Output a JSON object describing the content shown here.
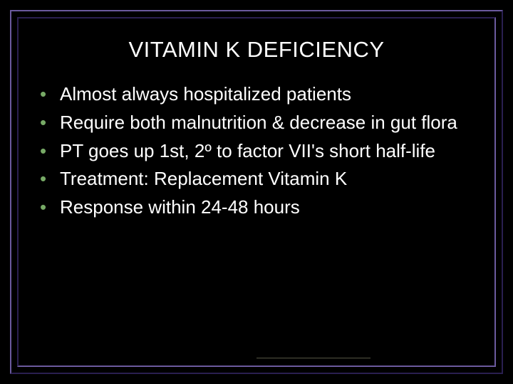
{
  "slide": {
    "title": "VITAMIN K DEFICIENCY",
    "bullets": [
      "Almost always hospitalized patients",
      "Require both malnutrition & decrease in gut flora",
      "PT goes up 1st, 2º to factor VII's short half-life",
      "Treatment: Replacement Vitamin K",
      "Response within 24-48 hours"
    ],
    "styling": {
      "background_color": "#000000",
      "text_color": "#ffffff",
      "bullet_color": "#77aa66",
      "frame_light": "#6b5a9e",
      "frame_dark": "#2a1f50",
      "title_fontsize": 31,
      "body_fontsize": 26,
      "font_family": "Verdana"
    }
  }
}
